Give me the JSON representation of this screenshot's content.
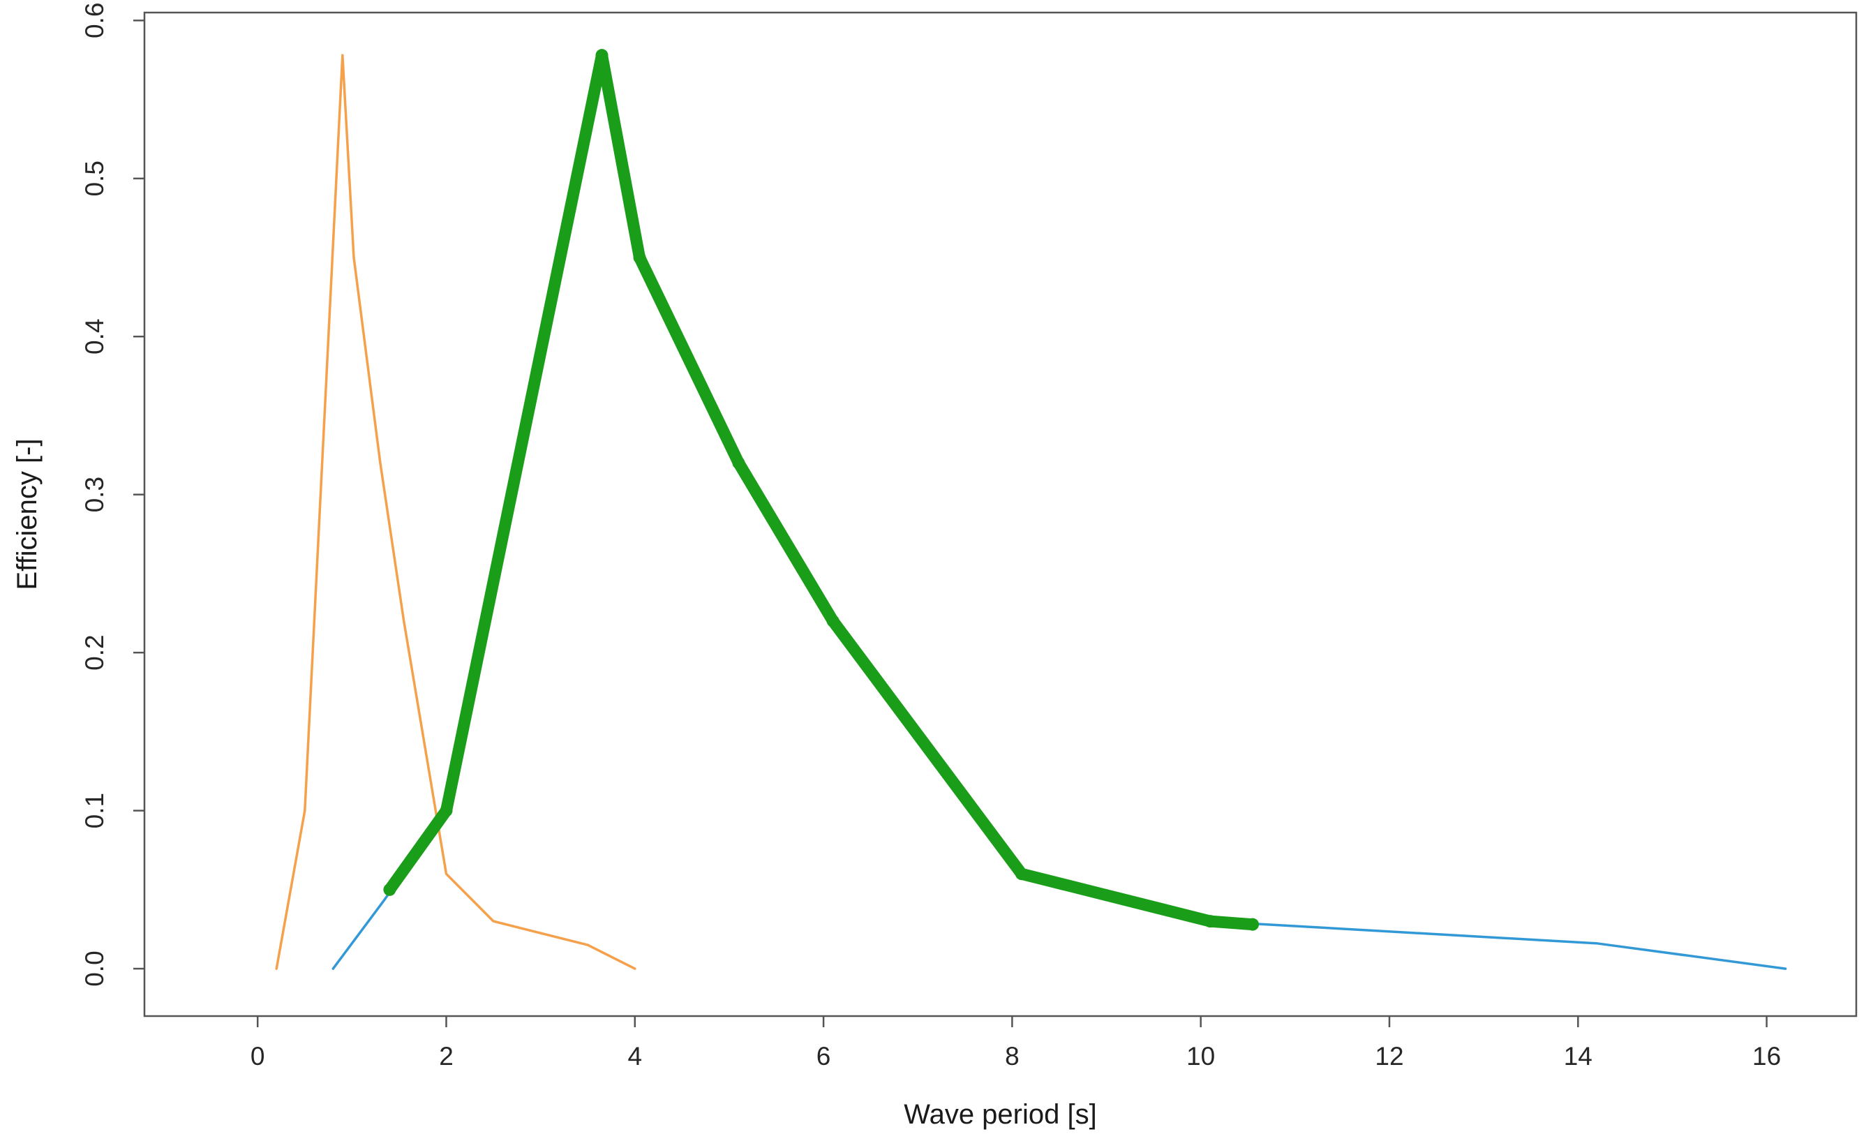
{
  "chart_data": {
    "type": "line",
    "title": "",
    "xlabel": "Wave period [s]",
    "ylabel": "Efficiency [-]",
    "xlim": [
      -1.2,
      16.95
    ],
    "ylim": [
      -0.03,
      0.605
    ],
    "xticks": [
      0,
      2,
      4,
      6,
      8,
      10,
      12,
      14,
      16
    ],
    "yticks": [
      0.0,
      0.1,
      0.2,
      0.3,
      0.4,
      0.5,
      0.6
    ],
    "ytick_labels": [
      "0.0",
      "0.1",
      "0.2",
      "0.3",
      "0.4",
      "0.5",
      "0.6"
    ],
    "grid": false,
    "legend": "none",
    "series": [
      {
        "color": "#3399d6",
        "style": "thin-line",
        "x": [
          0.8,
          1.35,
          2.0,
          3.65,
          4.05,
          5.1,
          6.1,
          8.1,
          10.1,
          14.2,
          16.2
        ],
        "y": [
          0.0,
          0.044,
          0.1,
          0.578,
          0.45,
          0.32,
          0.22,
          0.06,
          0.03,
          0.016,
          0.0
        ]
      },
      {
        "color": "#f5a04a",
        "style": "thin-line",
        "x": [
          0.2,
          0.5,
          0.9,
          1.02,
          1.3,
          1.55,
          2.0,
          2.5,
          3.5,
          4.0
        ],
        "y": [
          0.0,
          0.1,
          0.578,
          0.45,
          0.32,
          0.22,
          0.06,
          0.03,
          0.015,
          0.0
        ]
      },
      {
        "color": "#1a9e1a",
        "style": "thick-markers",
        "x": [
          1.4,
          2.0,
          3.65,
          4.05,
          5.1,
          6.1,
          8.1,
          10.1,
          10.55
        ],
        "y": [
          0.05,
          0.1,
          0.578,
          0.45,
          0.32,
          0.22,
          0.06,
          0.03,
          0.028
        ]
      }
    ]
  }
}
